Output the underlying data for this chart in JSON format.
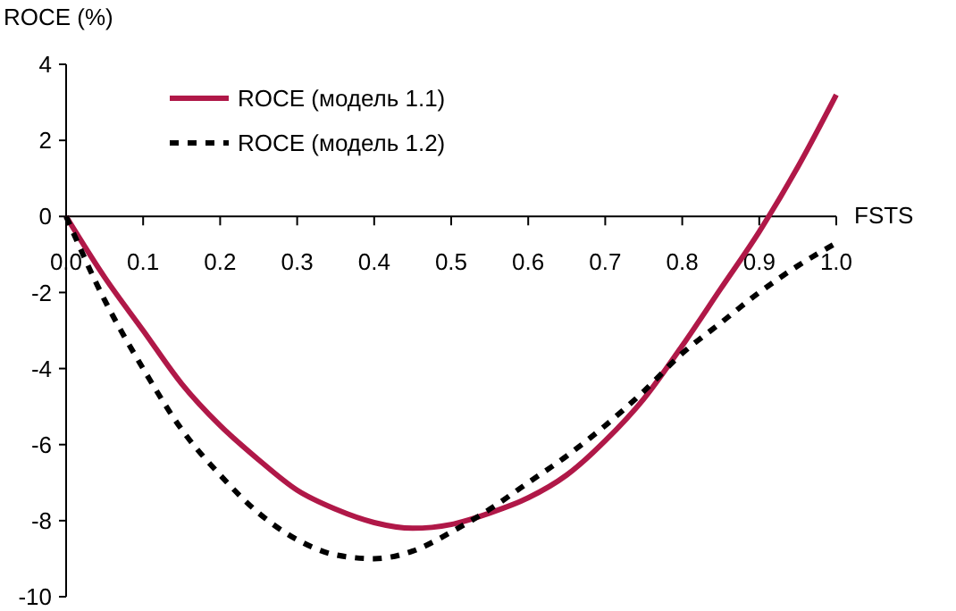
{
  "chart_data": {
    "type": "line",
    "ylabel": "ROCE (%)",
    "xlabel": "FSTS",
    "x": [
      0,
      0.05,
      0.1,
      0.15,
      0.2,
      0.25,
      0.3,
      0.35,
      0.4,
      0.45,
      0.5,
      0.55,
      0.6,
      0.65,
      0.7,
      0.75,
      0.8,
      0.85,
      0.9,
      0.95,
      1.0
    ],
    "series": [
      {
        "name": "ROCE (модель 1.1)",
        "color": "#b01848",
        "line_style": "solid",
        "values": [
          0,
          -1.6,
          -3.0,
          -4.4,
          -5.5,
          -6.4,
          -7.2,
          -7.7,
          -8.05,
          -8.2,
          -8.1,
          -7.8,
          -7.4,
          -6.8,
          -5.9,
          -4.8,
          -3.4,
          -1.9,
          -0.4,
          1.3,
          3.2
        ]
      },
      {
        "name": "ROCE (модель 1.2)",
        "color": "#000000",
        "line_style": "dashed",
        "values": [
          0,
          -2.2,
          -4.0,
          -5.6,
          -6.8,
          -7.8,
          -8.5,
          -8.9,
          -9.0,
          -8.8,
          -8.3,
          -7.7,
          -7.0,
          -6.3,
          -5.5,
          -4.6,
          -3.6,
          -2.8,
          -2.0,
          -1.3,
          -0.7
        ]
      }
    ],
    "xlim": [
      0,
      1
    ],
    "xticks": [
      {
        "value": 0,
        "label": "0.0"
      },
      0.1,
      0.2,
      0.3,
      0.4,
      0.5,
      0.6,
      0.7,
      0.8,
      0.9,
      {
        "value": 1,
        "label": "1.0"
      }
    ],
    "ylim": [
      -10,
      4
    ],
    "yticks": [
      -10,
      -8,
      -6,
      -4,
      -2,
      0,
      2,
      4
    ],
    "legend": "top left"
  }
}
